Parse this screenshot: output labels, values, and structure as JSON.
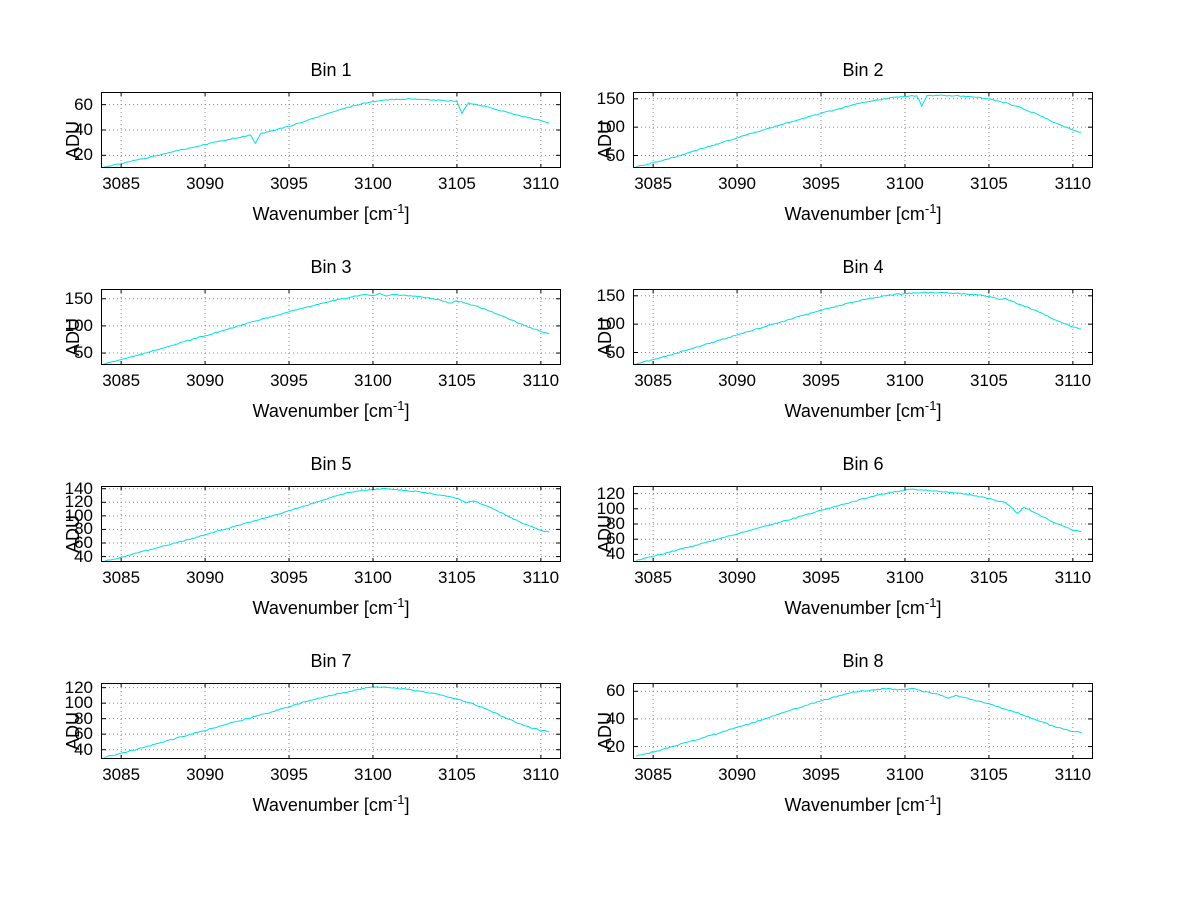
{
  "page": {
    "background": "#ffffff",
    "grid_line_color": "#888888",
    "axis_color": "#000000"
  },
  "chart_data": [
    {
      "type": "line",
      "title": "Bin 1",
      "xlabel_pre": "Wavenumber [cm",
      "xlabel_sup": "-1",
      "xlabel_post": "]",
      "ylabel": "ADU",
      "line_color": "#00e0e0",
      "xlim": [
        3083.8,
        3111.2
      ],
      "ylim": [
        10,
        70
      ],
      "xticks": [
        3085,
        3090,
        3095,
        3100,
        3105,
        3110
      ],
      "yticks": [
        20,
        40,
        60
      ],
      "grid": true,
      "points": [
        [
          3084,
          11
        ],
        [
          3085,
          13.5
        ],
        [
          3086,
          16.5
        ],
        [
          3087,
          19.5
        ],
        [
          3088,
          22.5
        ],
        [
          3089,
          25.5
        ],
        [
          3090,
          28.5
        ],
        [
          3091,
          31.5
        ],
        [
          3092,
          34
        ],
        [
          3092.7,
          36
        ],
        [
          3093,
          29.5
        ],
        [
          3093.3,
          37
        ],
        [
          3094,
          39.5
        ],
        [
          3095,
          43
        ],
        [
          3096,
          47
        ],
        [
          3097,
          51.5
        ],
        [
          3098,
          56
        ],
        [
          3099,
          59.5
        ],
        [
          3100,
          62.5
        ],
        [
          3101,
          64
        ],
        [
          3102,
          64.5
        ],
        [
          3103,
          64
        ],
        [
          3104,
          63.5
        ],
        [
          3105,
          62.5
        ],
        [
          3105.3,
          53
        ],
        [
          3105.7,
          61.5
        ],
        [
          3106,
          60.5
        ],
        [
          3107,
          57.5
        ],
        [
          3108,
          54
        ],
        [
          3109,
          50.5
        ],
        [
          3110,
          47.5
        ],
        [
          3110.5,
          45.5
        ]
      ]
    },
    {
      "type": "line",
      "title": "Bin 2",
      "xlabel_pre": "Wavenumber [cm",
      "xlabel_sup": "-1",
      "xlabel_post": "]",
      "ylabel": "ADU",
      "line_color": "#00e0e0",
      "xlim": [
        3083.8,
        3111.2
      ],
      "ylim": [
        28,
        162
      ],
      "xticks": [
        3085,
        3090,
        3095,
        3100,
        3105,
        3110
      ],
      "yticks": [
        50,
        100,
        150
      ],
      "grid": true,
      "points": [
        [
          3084,
          30
        ],
        [
          3085,
          37
        ],
        [
          3086,
          45
        ],
        [
          3087,
          54
        ],
        [
          3088,
          63
        ],
        [
          3089,
          72
        ],
        [
          3090,
          81
        ],
        [
          3091,
          90
        ],
        [
          3092,
          99
        ],
        [
          3093,
          108
        ],
        [
          3094,
          116
        ],
        [
          3095,
          124
        ],
        [
          3096,
          132
        ],
        [
          3097,
          140
        ],
        [
          3098,
          146
        ],
        [
          3099,
          151
        ],
        [
          3100,
          154
        ],
        [
          3100.7,
          155.5
        ],
        [
          3101,
          137
        ],
        [
          3101.3,
          155.5
        ],
        [
          3102,
          156
        ],
        [
          3103,
          155.5
        ],
        [
          3104,
          153.5
        ],
        [
          3105,
          150
        ],
        [
          3106,
          143
        ],
        [
          3107,
          133
        ],
        [
          3108,
          121
        ],
        [
          3109,
          107
        ],
        [
          3110,
          95
        ],
        [
          3110.5,
          91
        ]
      ]
    },
    {
      "type": "line",
      "title": "Bin 3",
      "xlabel_pre": "Wavenumber [cm",
      "xlabel_sup": "-1",
      "xlabel_post": "]",
      "ylabel": "ADU",
      "line_color": "#00e0e0",
      "xlim": [
        3083.8,
        3111.2
      ],
      "ylim": [
        28,
        168
      ],
      "xticks": [
        3085,
        3090,
        3095,
        3100,
        3105,
        3110
      ],
      "yticks": [
        50,
        100,
        150
      ],
      "grid": true,
      "points": [
        [
          3084,
          30
        ],
        [
          3085,
          38
        ],
        [
          3086,
          46
        ],
        [
          3087,
          55
        ],
        [
          3088,
          64
        ],
        [
          3089,
          73
        ],
        [
          3090,
          82
        ],
        [
          3091,
          91
        ],
        [
          3092,
          100
        ],
        [
          3093,
          109
        ],
        [
          3094,
          117
        ],
        [
          3095,
          126
        ],
        [
          3096,
          134
        ],
        [
          3097,
          142
        ],
        [
          3098,
          149
        ],
        [
          3099,
          155
        ],
        [
          3099.6,
          158
        ],
        [
          3100,
          156
        ],
        [
          3100.4,
          160
        ],
        [
          3100.8,
          155
        ],
        [
          3101.2,
          158
        ],
        [
          3102,
          156
        ],
        [
          3103,
          152.5
        ],
        [
          3104,
          148
        ],
        [
          3104.6,
          142
        ],
        [
          3105,
          146
        ],
        [
          3106,
          138
        ],
        [
          3107,
          127
        ],
        [
          3108,
          114
        ],
        [
          3109,
          101
        ],
        [
          3110,
          90
        ],
        [
          3110.5,
          86
        ]
      ]
    },
    {
      "type": "line",
      "title": "Bin 4",
      "xlabel_pre": "Wavenumber [cm",
      "xlabel_sup": "-1",
      "xlabel_post": "]",
      "ylabel": "ADU",
      "line_color": "#00e0e0",
      "xlim": [
        3083.8,
        3111.2
      ],
      "ylim": [
        28,
        162
      ],
      "xticks": [
        3085,
        3090,
        3095,
        3100,
        3105,
        3110
      ],
      "yticks": [
        50,
        100,
        150
      ],
      "grid": true,
      "points": [
        [
          3084,
          30
        ],
        [
          3085,
          37.5
        ],
        [
          3086,
          45.5
        ],
        [
          3087,
          54
        ],
        [
          3088,
          63
        ],
        [
          3089,
          72
        ],
        [
          3090,
          81
        ],
        [
          3091,
          90
        ],
        [
          3092,
          99
        ],
        [
          3093,
          107.5
        ],
        [
          3094,
          116
        ],
        [
          3095,
          124
        ],
        [
          3096,
          132
        ],
        [
          3097,
          139.5
        ],
        [
          3098,
          146
        ],
        [
          3099,
          151
        ],
        [
          3100,
          154
        ],
        [
          3101,
          155.5
        ],
        [
          3102,
          155.5
        ],
        [
          3103,
          154.5
        ],
        [
          3104,
          152.5
        ],
        [
          3105,
          149
        ],
        [
          3105.7,
          144
        ],
        [
          3106,
          145
        ],
        [
          3106.4,
          140
        ],
        [
          3107,
          133
        ],
        [
          3108,
          121
        ],
        [
          3109,
          107
        ],
        [
          3110,
          95
        ],
        [
          3110.5,
          91
        ]
      ]
    },
    {
      "type": "line",
      "title": "Bin 5",
      "xlabel_pre": "Wavenumber [cm",
      "xlabel_sup": "-1",
      "xlabel_post": "]",
      "ylabel": "ADU",
      "line_color": "#00e0e0",
      "xlim": [
        3083.8,
        3111.2
      ],
      "ylim": [
        32,
        144
      ],
      "xticks": [
        3085,
        3090,
        3095,
        3100,
        3105,
        3110
      ],
      "yticks": [
        40,
        60,
        80,
        100,
        120,
        140
      ],
      "grid": true,
      "points": [
        [
          3084,
          33
        ],
        [
          3085,
          39
        ],
        [
          3086,
          45.5
        ],
        [
          3087,
          52
        ],
        [
          3088,
          58.5
        ],
        [
          3089,
          65
        ],
        [
          3090,
          72
        ],
        [
          3091,
          79
        ],
        [
          3092,
          86
        ],
        [
          3093,
          93
        ],
        [
          3094,
          100
        ],
        [
          3095,
          107.5
        ],
        [
          3096,
          115
        ],
        [
          3097,
          123
        ],
        [
          3098,
          131
        ],
        [
          3099,
          136.5
        ],
        [
          3100,
          139
        ],
        [
          3100.5,
          140
        ],
        [
          3101,
          139.5
        ],
        [
          3102,
          137.5
        ],
        [
          3103,
          134.5
        ],
        [
          3104,
          130.5
        ],
        [
          3105,
          126
        ],
        [
          3105.5,
          119.5
        ],
        [
          3106,
          122
        ],
        [
          3107,
          112.5
        ],
        [
          3108,
          100
        ],
        [
          3109,
          88
        ],
        [
          3110,
          79
        ],
        [
          3110.5,
          76
        ]
      ]
    },
    {
      "type": "line",
      "title": "Bin 6",
      "xlabel_pre": "Wavenumber [cm",
      "xlabel_sup": "-1",
      "xlabel_post": "]",
      "ylabel": "ADU",
      "line_color": "#00e0e0",
      "xlim": [
        3083.8,
        3111.2
      ],
      "ylim": [
        30,
        130
      ],
      "xticks": [
        3085,
        3090,
        3095,
        3100,
        3105,
        3110
      ],
      "yticks": [
        40,
        60,
        80,
        100,
        120
      ],
      "grid": true,
      "points": [
        [
          3084,
          32
        ],
        [
          3085,
          37.5
        ],
        [
          3086,
          43
        ],
        [
          3087,
          49
        ],
        [
          3088,
          55
        ],
        [
          3089,
          61
        ],
        [
          3090,
          67
        ],
        [
          3091,
          73
        ],
        [
          3092,
          79
        ],
        [
          3093,
          85
        ],
        [
          3094,
          91.5
        ],
        [
          3095,
          98
        ],
        [
          3096,
          104
        ],
        [
          3097,
          110
        ],
        [
          3098,
          116
        ],
        [
          3099,
          121
        ],
        [
          3100,
          124.5
        ],
        [
          3100.5,
          126
        ],
        [
          3101,
          125
        ],
        [
          3102,
          123
        ],
        [
          3103,
          121
        ],
        [
          3104,
          118
        ],
        [
          3105,
          113.5
        ],
        [
          3106,
          108
        ],
        [
          3106.7,
          94
        ],
        [
          3107.1,
          102
        ],
        [
          3108,
          92
        ],
        [
          3109,
          80.5
        ],
        [
          3110,
          72
        ],
        [
          3110.5,
          70
        ]
      ]
    },
    {
      "type": "line",
      "title": "Bin 7",
      "xlabel_pre": "Wavenumber [cm",
      "xlabel_sup": "-1",
      "xlabel_post": "]",
      "ylabel": "ADU",
      "line_color": "#00e0e0",
      "xlim": [
        3083.8,
        3111.2
      ],
      "ylim": [
        28,
        126
      ],
      "xticks": [
        3085,
        3090,
        3095,
        3100,
        3105,
        3110
      ],
      "yticks": [
        40,
        60,
        80,
        100,
        120
      ],
      "grid": true,
      "points": [
        [
          3084,
          30
        ],
        [
          3085,
          35.5
        ],
        [
          3086,
          41
        ],
        [
          3087,
          47
        ],
        [
          3088,
          53
        ],
        [
          3089,
          59
        ],
        [
          3090,
          65
        ],
        [
          3091,
          71
        ],
        [
          3092,
          77
        ],
        [
          3093,
          83
        ],
        [
          3094,
          89
        ],
        [
          3095,
          95.5
        ],
        [
          3096,
          102
        ],
        [
          3097,
          107.5
        ],
        [
          3098,
          112.5
        ],
        [
          3099,
          117
        ],
        [
          3099.6,
          120
        ],
        [
          3100,
          121
        ],
        [
          3101,
          120
        ],
        [
          3102,
          118
        ],
        [
          3103,
          115
        ],
        [
          3104,
          110.5
        ],
        [
          3105,
          105.5
        ],
        [
          3106,
          99
        ],
        [
          3107,
          90
        ],
        [
          3108,
          80
        ],
        [
          3109,
          71
        ],
        [
          3110,
          65
        ],
        [
          3110.5,
          63
        ]
      ]
    },
    {
      "type": "line",
      "title": "Bin 8",
      "xlabel_pre": "Wavenumber [cm",
      "xlabel_sup": "-1",
      "xlabel_post": "]",
      "ylabel": "ADU",
      "line_color": "#00e0e0",
      "xlim": [
        3083.8,
        3111.2
      ],
      "ylim": [
        11,
        66
      ],
      "xticks": [
        3085,
        3090,
        3095,
        3100,
        3105,
        3110
      ],
      "yticks": [
        20,
        40,
        60
      ],
      "grid": true,
      "points": [
        [
          3084,
          13
        ],
        [
          3085,
          16
        ],
        [
          3086,
          19.5
        ],
        [
          3087,
          23
        ],
        [
          3088,
          26.5
        ],
        [
          3089,
          30
        ],
        [
          3090,
          34
        ],
        [
          3091,
          37.5
        ],
        [
          3092,
          41.5
        ],
        [
          3093,
          45.5
        ],
        [
          3094,
          49.5
        ],
        [
          3095,
          53
        ],
        [
          3096,
          56.5
        ],
        [
          3097,
          59.5
        ],
        [
          3098,
          61
        ],
        [
          3099,
          62
        ],
        [
          3099.5,
          61
        ],
        [
          3100,
          61.5
        ],
        [
          3100.5,
          62
        ],
        [
          3101,
          60
        ],
        [
          3102,
          58
        ],
        [
          3102.6,
          55
        ],
        [
          3103,
          57
        ],
        [
          3104,
          54
        ],
        [
          3105,
          51
        ],
        [
          3106,
          47
        ],
        [
          3107,
          43
        ],
        [
          3108,
          38.5
        ],
        [
          3109,
          34
        ],
        [
          3110,
          31
        ],
        [
          3110.5,
          30
        ]
      ]
    }
  ]
}
